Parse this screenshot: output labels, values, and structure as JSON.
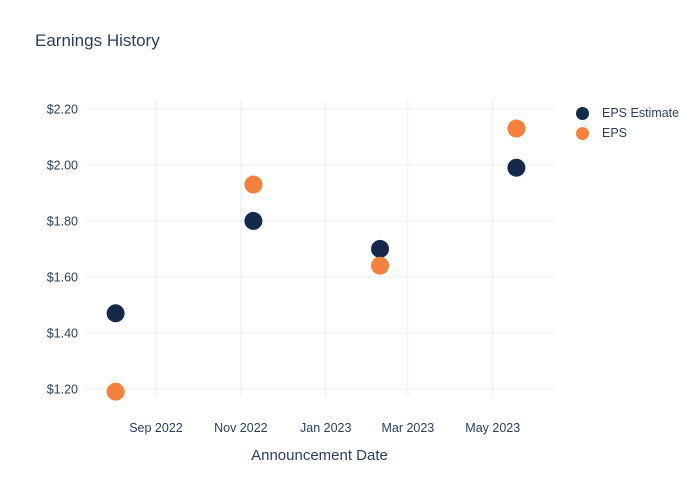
{
  "chart_data": {
    "type": "scatter",
    "title": "Earnings History",
    "xlabel": "Announcement Date",
    "ylabel": "",
    "x_dates": [
      "2022-08-03",
      "2022-11-10",
      "2023-02-09",
      "2023-05-18"
    ],
    "series": [
      {
        "name": "EPS Estimate",
        "color": "#152a4b",
        "values": [
          1.47,
          1.8,
          1.7,
          1.99
        ]
      },
      {
        "name": "EPS",
        "color": "#f5813c",
        "values": [
          1.19,
          1.93,
          1.64,
          2.13
        ]
      }
    ],
    "x_ticks": [
      {
        "label": "Sep 2022",
        "date": "2022-09-01"
      },
      {
        "label": "Nov 2022",
        "date": "2022-11-01"
      },
      {
        "label": "Jan 2023",
        "date": "2023-01-01"
      },
      {
        "label": "Mar 2023",
        "date": "2023-03-01"
      },
      {
        "label": "May 2023",
        "date": "2023-05-01"
      }
    ],
    "y_ticks": [
      {
        "label": "$1.20",
        "value": 1.2
      },
      {
        "label": "$1.40",
        "value": 1.4
      },
      {
        "label": "$1.60",
        "value": 1.6
      },
      {
        "label": "$1.80",
        "value": 1.8
      },
      {
        "label": "$2.00",
        "value": 2.0
      },
      {
        "label": "$2.20",
        "value": 2.2
      }
    ],
    "xlim": [
      "2022-07-12",
      "2023-06-14"
    ],
    "ylim": [
      1.171,
      2.232
    ],
    "grid": true,
    "legend_position": "right",
    "marker_size_px": 18,
    "colors": {
      "text": "#2a3f5f",
      "grid": "#e9edf5",
      "background": "#ffffff",
      "eps_estimate": "#152a4b",
      "eps": "#f5813c"
    }
  }
}
